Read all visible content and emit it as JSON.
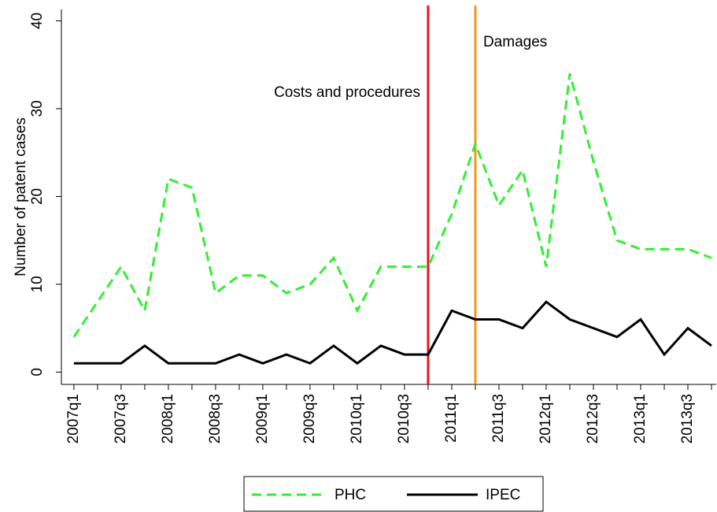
{
  "chart_data": {
    "type": "line",
    "y_label": "Number of patent cases",
    "categories": [
      "2007q1",
      null,
      "2007q3",
      null,
      "2008q1",
      null,
      "2008q3",
      null,
      "2009q1",
      null,
      "2009q3",
      null,
      "2010q1",
      null,
      "2010q3",
      null,
      "2011q1",
      null,
      "2011q3",
      null,
      "2012q1",
      null,
      "2012q3",
      null,
      "2013q1",
      null,
      "2013q3",
      null
    ],
    "series": [
      {
        "name": "PHC",
        "color": "#33ee33",
        "dash": true,
        "values": [
          4,
          8,
          12,
          7,
          22,
          21,
          9,
          11,
          11,
          9,
          10,
          13,
          7,
          12,
          12,
          12,
          18,
          26,
          19,
          23,
          12,
          34,
          24,
          15,
          14,
          14,
          14,
          13
        ]
      },
      {
        "name": "IPEC",
        "color": "#000000",
        "dash": false,
        "values": [
          1,
          1,
          1,
          3,
          1,
          1,
          1,
          2,
          1,
          2,
          1,
          3,
          1,
          3,
          2,
          2,
          7,
          6,
          6,
          5,
          8,
          6,
          5,
          4,
          6,
          2,
          5,
          3
        ]
      }
    ],
    "vlines": [
      {
        "index": 15,
        "color": "#e8141c",
        "label": "Costs and procedures",
        "side": "left"
      },
      {
        "index": 17,
        "color": "#f7941d",
        "label": "Damages",
        "side": "right"
      }
    ],
    "ylim": [
      -1.4,
      41.3
    ],
    "yticks": [
      0,
      10,
      20,
      30,
      40
    ]
  }
}
